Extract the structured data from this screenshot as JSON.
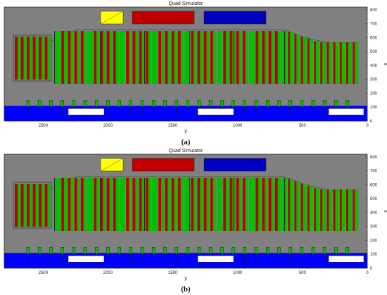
{
  "figure": {
    "panels": [
      {
        "title": "Quad Simulator",
        "caption": "(a)",
        "xlabel": "y",
        "ylabel": "x"
      },
      {
        "title": "Quad Simulator",
        "caption": "(b)",
        "xlabel": "y",
        "ylabel": "x"
      }
    ]
  },
  "chart_data": {
    "type": "other",
    "x_axis": {
      "ticks": [
        "2500",
        "2000",
        "1500",
        "1000",
        "500",
        "0"
      ],
      "reversed": true,
      "range": [
        2800,
        0
      ]
    },
    "y_axis": {
      "ticks": [
        "0",
        "100",
        "200",
        "300",
        "400",
        "500",
        "600",
        "700",
        "800"
      ],
      "range": [
        0,
        820
      ]
    },
    "colors": {
      "background": "#808080",
      "ground_band": "#0000ff",
      "crop_green": "#00c000",
      "crop_red": "#c00000",
      "header_yellow": "#ffff00",
      "header_red": "#c00000",
      "header_blue": "#0000c0",
      "vehicle": "#ffffff"
    }
  }
}
